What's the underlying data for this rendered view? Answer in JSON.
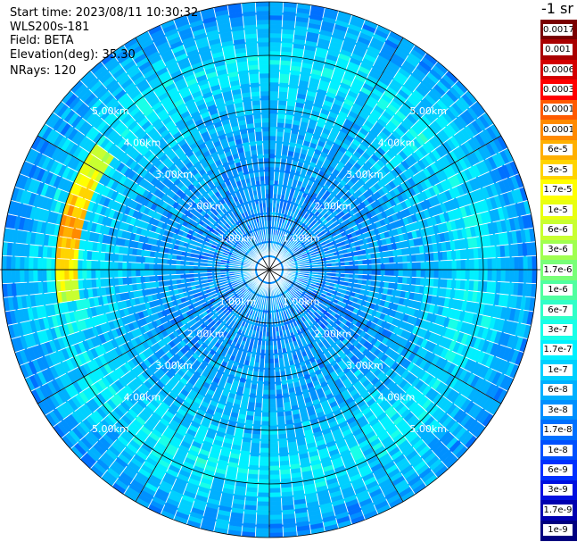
{
  "info": {
    "start_time": "Start time: 2023/08/11 10:30:32",
    "instrument": "WLS200s-181",
    "field": "Field: BETA",
    "elevation": "Elevation(deg): 35.30",
    "nrays": "NRays: 120"
  },
  "colorbar": {
    "unit": "-1 sr",
    "levels": [
      {
        "label": "0.0017",
        "color": "#7a0000"
      },
      {
        "label": "0.001",
        "color": "#aa0000"
      },
      {
        "label": "0.0006",
        "color": "#d40000"
      },
      {
        "label": "0.0003",
        "color": "#ff0000"
      },
      {
        "label": "0.00017",
        "color": "#ff5a00"
      },
      {
        "label": "0.0001",
        "color": "#ff8a00"
      },
      {
        "label": "6e-5",
        "color": "#ffb000"
      },
      {
        "label": "3e-5",
        "color": "#ffd400"
      },
      {
        "label": "1.7e-5",
        "color": "#ffff00"
      },
      {
        "label": "1e-5",
        "color": "#e8ff10"
      },
      {
        "label": "6e-6",
        "color": "#c8ff30"
      },
      {
        "label": "3e-6",
        "color": "#a0ff50"
      },
      {
        "label": "1.7e-6",
        "color": "#78ff78"
      },
      {
        "label": "1e-6",
        "color": "#50ffa0"
      },
      {
        "label": "6e-7",
        "color": "#30ffc8"
      },
      {
        "label": "3e-7",
        "color": "#18ffe8"
      },
      {
        "label": "1.7e-7",
        "color": "#00f0ff"
      },
      {
        "label": "1e-7",
        "color": "#00d0ff"
      },
      {
        "label": "6e-8",
        "color": "#00b0ff"
      },
      {
        "label": "3e-8",
        "color": "#0090ff"
      },
      {
        "label": "1.7e-8",
        "color": "#0070ff"
      },
      {
        "label": "1e-8",
        "color": "#0050ff"
      },
      {
        "label": "6e-9",
        "color": "#0030ff"
      },
      {
        "label": "3e-9",
        "color": "#0010e0"
      },
      {
        "label": "1.7e-9",
        "color": "#0000b0"
      },
      {
        "label": "1e-9",
        "color": "#000080"
      }
    ]
  },
  "chart_data": {
    "type": "heatmap",
    "projection": "polar (PPI)",
    "field": "BETA",
    "n_rays": 120,
    "range_max_km": 5.0,
    "range_rings_km": [
      1.0,
      2.0,
      3.0,
      4.0,
      5.0
    ],
    "range_ring_labels": [
      "1.00km",
      "2.00km",
      "3.00km",
      "4.00km",
      "5.00km"
    ],
    "azimuth_lines_deg": [
      0,
      30,
      60,
      90,
      120,
      150,
      180,
      210,
      240,
      270,
      300,
      330
    ],
    "radial_profile": [
      {
        "range_km": 0.0,
        "level": "1e-8"
      },
      {
        "range_km": 0.4,
        "level": "6e-8"
      },
      {
        "range_km": 0.7,
        "level": "3e-8"
      },
      {
        "range_km": 1.5,
        "level": "3e-8"
      },
      {
        "range_km": 2.6,
        "level": "6e-8"
      },
      {
        "range_km": 3.4,
        "level": "1e-7"
      },
      {
        "range_km": 3.8,
        "level": "1.7e-7"
      },
      {
        "range_km": 4.2,
        "level": "1e-7"
      },
      {
        "range_km": 5.0,
        "level": "3e-8"
      }
    ],
    "features": [
      {
        "description_level": "3e-6 to 1e-4",
        "azimuth_deg_range": [
          260,
          305
        ],
        "range_km": [
          3.6,
          4.0
        ]
      }
    ],
    "grid": true
  }
}
